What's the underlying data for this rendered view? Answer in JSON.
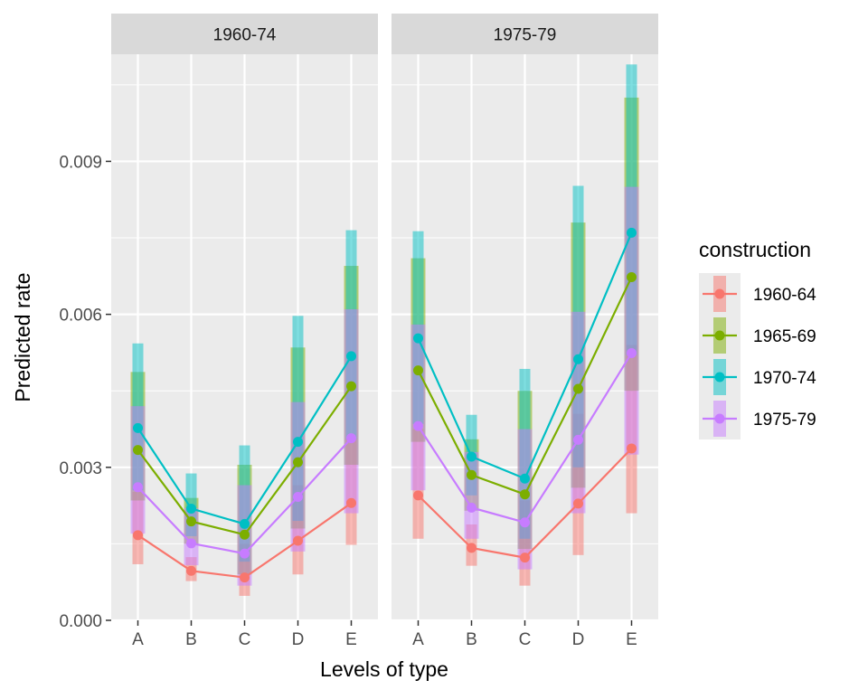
{
  "chart_data": {
    "type": "line",
    "xlabel": "Levels of type",
    "ylabel": "Predicted rate",
    "ylim": [
      0,
      0.0111
    ],
    "y_ticks": [
      "0.000",
      "0.003",
      "0.006",
      "0.009"
    ],
    "categories": [
      "A",
      "B",
      "C",
      "D",
      "E"
    ],
    "grid": true,
    "legend_title": "construction",
    "legend_position": "right",
    "colors": {
      "1960-64": "#F8766D",
      "1965-69": "#7CAE00",
      "1970-74": "#00BFC4",
      "1975-79": "#C77CFF"
    },
    "panels": [
      {
        "strip_label": "1960-74",
        "series": [
          {
            "name": "1960-64",
            "values": [
              0.00167,
              0.00097,
              0.00084,
              0.00156,
              0.0023
            ],
            "lower": [
              0.0011,
              0.00077,
              0.00048,
              0.0009,
              0.00148
            ],
            "upper": [
              0.00252,
              0.00124,
              0.0015,
              0.00265,
              0.00357
            ]
          },
          {
            "name": "1965-69",
            "values": [
              0.00334,
              0.00194,
              0.00168,
              0.0031,
              0.00459
            ],
            "lower": [
              0.00235,
              0.0015,
              0.0009,
              0.0018,
              0.00305
            ],
            "upper": [
              0.00487,
              0.0024,
              0.00305,
              0.00535,
              0.00695
            ]
          },
          {
            "name": "1970-74",
            "values": [
              0.00377,
              0.00219,
              0.00189,
              0.0035,
              0.00518
            ],
            "lower": [
              0.00255,
              0.00165,
              0.00115,
              0.00195,
              0.00355
            ],
            "upper": [
              0.00543,
              0.00288,
              0.00343,
              0.00597,
              0.00765
            ]
          },
          {
            "name": "1975-79",
            "values": [
              0.00261,
              0.00151,
              0.00131,
              0.00242,
              0.00357
            ],
            "lower": [
              0.0017,
              0.00108,
              0.00068,
              0.00135,
              0.0021
            ],
            "upper": [
              0.0042,
              0.0022,
              0.00265,
              0.00428,
              0.0061
            ]
          }
        ]
      },
      {
        "strip_label": "1975-79",
        "series": [
          {
            "name": "1960-64",
            "values": [
              0.00245,
              0.00142,
              0.00123,
              0.00229,
              0.00337
            ],
            "lower": [
              0.0016,
              0.00107,
              0.00068,
              0.00128,
              0.0021
            ],
            "upper": [
              0.00375,
              0.00188,
              0.00235,
              0.00405,
              0.0054
            ]
          },
          {
            "name": "1965-69",
            "values": [
              0.0049,
              0.00285,
              0.00247,
              0.00454,
              0.00673
            ],
            "lower": [
              0.0035,
              0.00215,
              0.0014,
              0.0026,
              0.0045
            ],
            "upper": [
              0.0071,
              0.00355,
              0.0045,
              0.0078,
              0.01025
            ]
          },
          {
            "name": "1970-74",
            "values": [
              0.00553,
              0.00321,
              0.00278,
              0.00512,
              0.0076
            ],
            "lower": [
              0.00385,
              0.00245,
              0.0016,
              0.003,
              0.0052
            ],
            "upper": [
              0.00763,
              0.00403,
              0.00493,
              0.00852,
              0.0109
            ]
          },
          {
            "name": "1975-79",
            "values": [
              0.00381,
              0.00221,
              0.00192,
              0.00354,
              0.00524
            ],
            "lower": [
              0.00255,
              0.0016,
              0.001,
              0.0021,
              0.00325
            ],
            "upper": [
              0.0058,
              0.0033,
              0.00375,
              0.00605,
              0.0085
            ]
          }
        ]
      }
    ]
  }
}
